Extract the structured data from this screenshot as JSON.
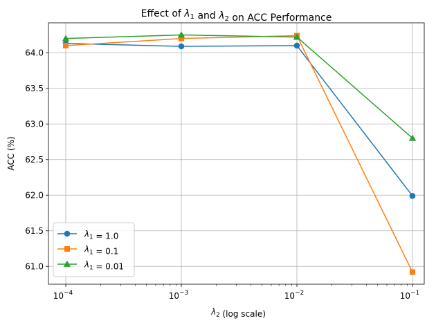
{
  "chart_data": {
    "type": "line",
    "title": "Effect of λ1 and λ2 on ACC Performance",
    "xlabel": "λ2 (log scale)",
    "ylabel": "ACC (%)",
    "x_scale": "log",
    "x": [
      0.0001,
      0.001,
      0.01,
      0.1
    ],
    "x_tick_labels": [
      {
        "base": "10",
        "exp": "−4"
      },
      {
        "base": "10",
        "exp": "−3"
      },
      {
        "base": "10",
        "exp": "−2"
      },
      {
        "base": "10",
        "exp": "−1"
      }
    ],
    "y_ticks": [
      "61.0",
      "61.5",
      "62.0",
      "62.5",
      "63.0",
      "63.5",
      "64.0"
    ],
    "ylim": [
      60.75,
      64.42
    ],
    "grid": true,
    "legend": "lower-left",
    "series": [
      {
        "name": "λ1 = 1.0",
        "values": [
          64.13,
          64.09,
          64.1,
          61.99
        ],
        "color": "#1f77b4",
        "marker": "circle"
      },
      {
        "name": "λ1 = 0.1",
        "values": [
          64.1,
          64.2,
          64.24,
          60.92
        ],
        "color": "#ff7f0e",
        "marker": "square"
      },
      {
        "name": "λ1 = 0.01",
        "values": [
          64.2,
          64.25,
          64.22,
          62.8
        ],
        "color": "#2ca02c",
        "marker": "triangle"
      }
    ]
  }
}
